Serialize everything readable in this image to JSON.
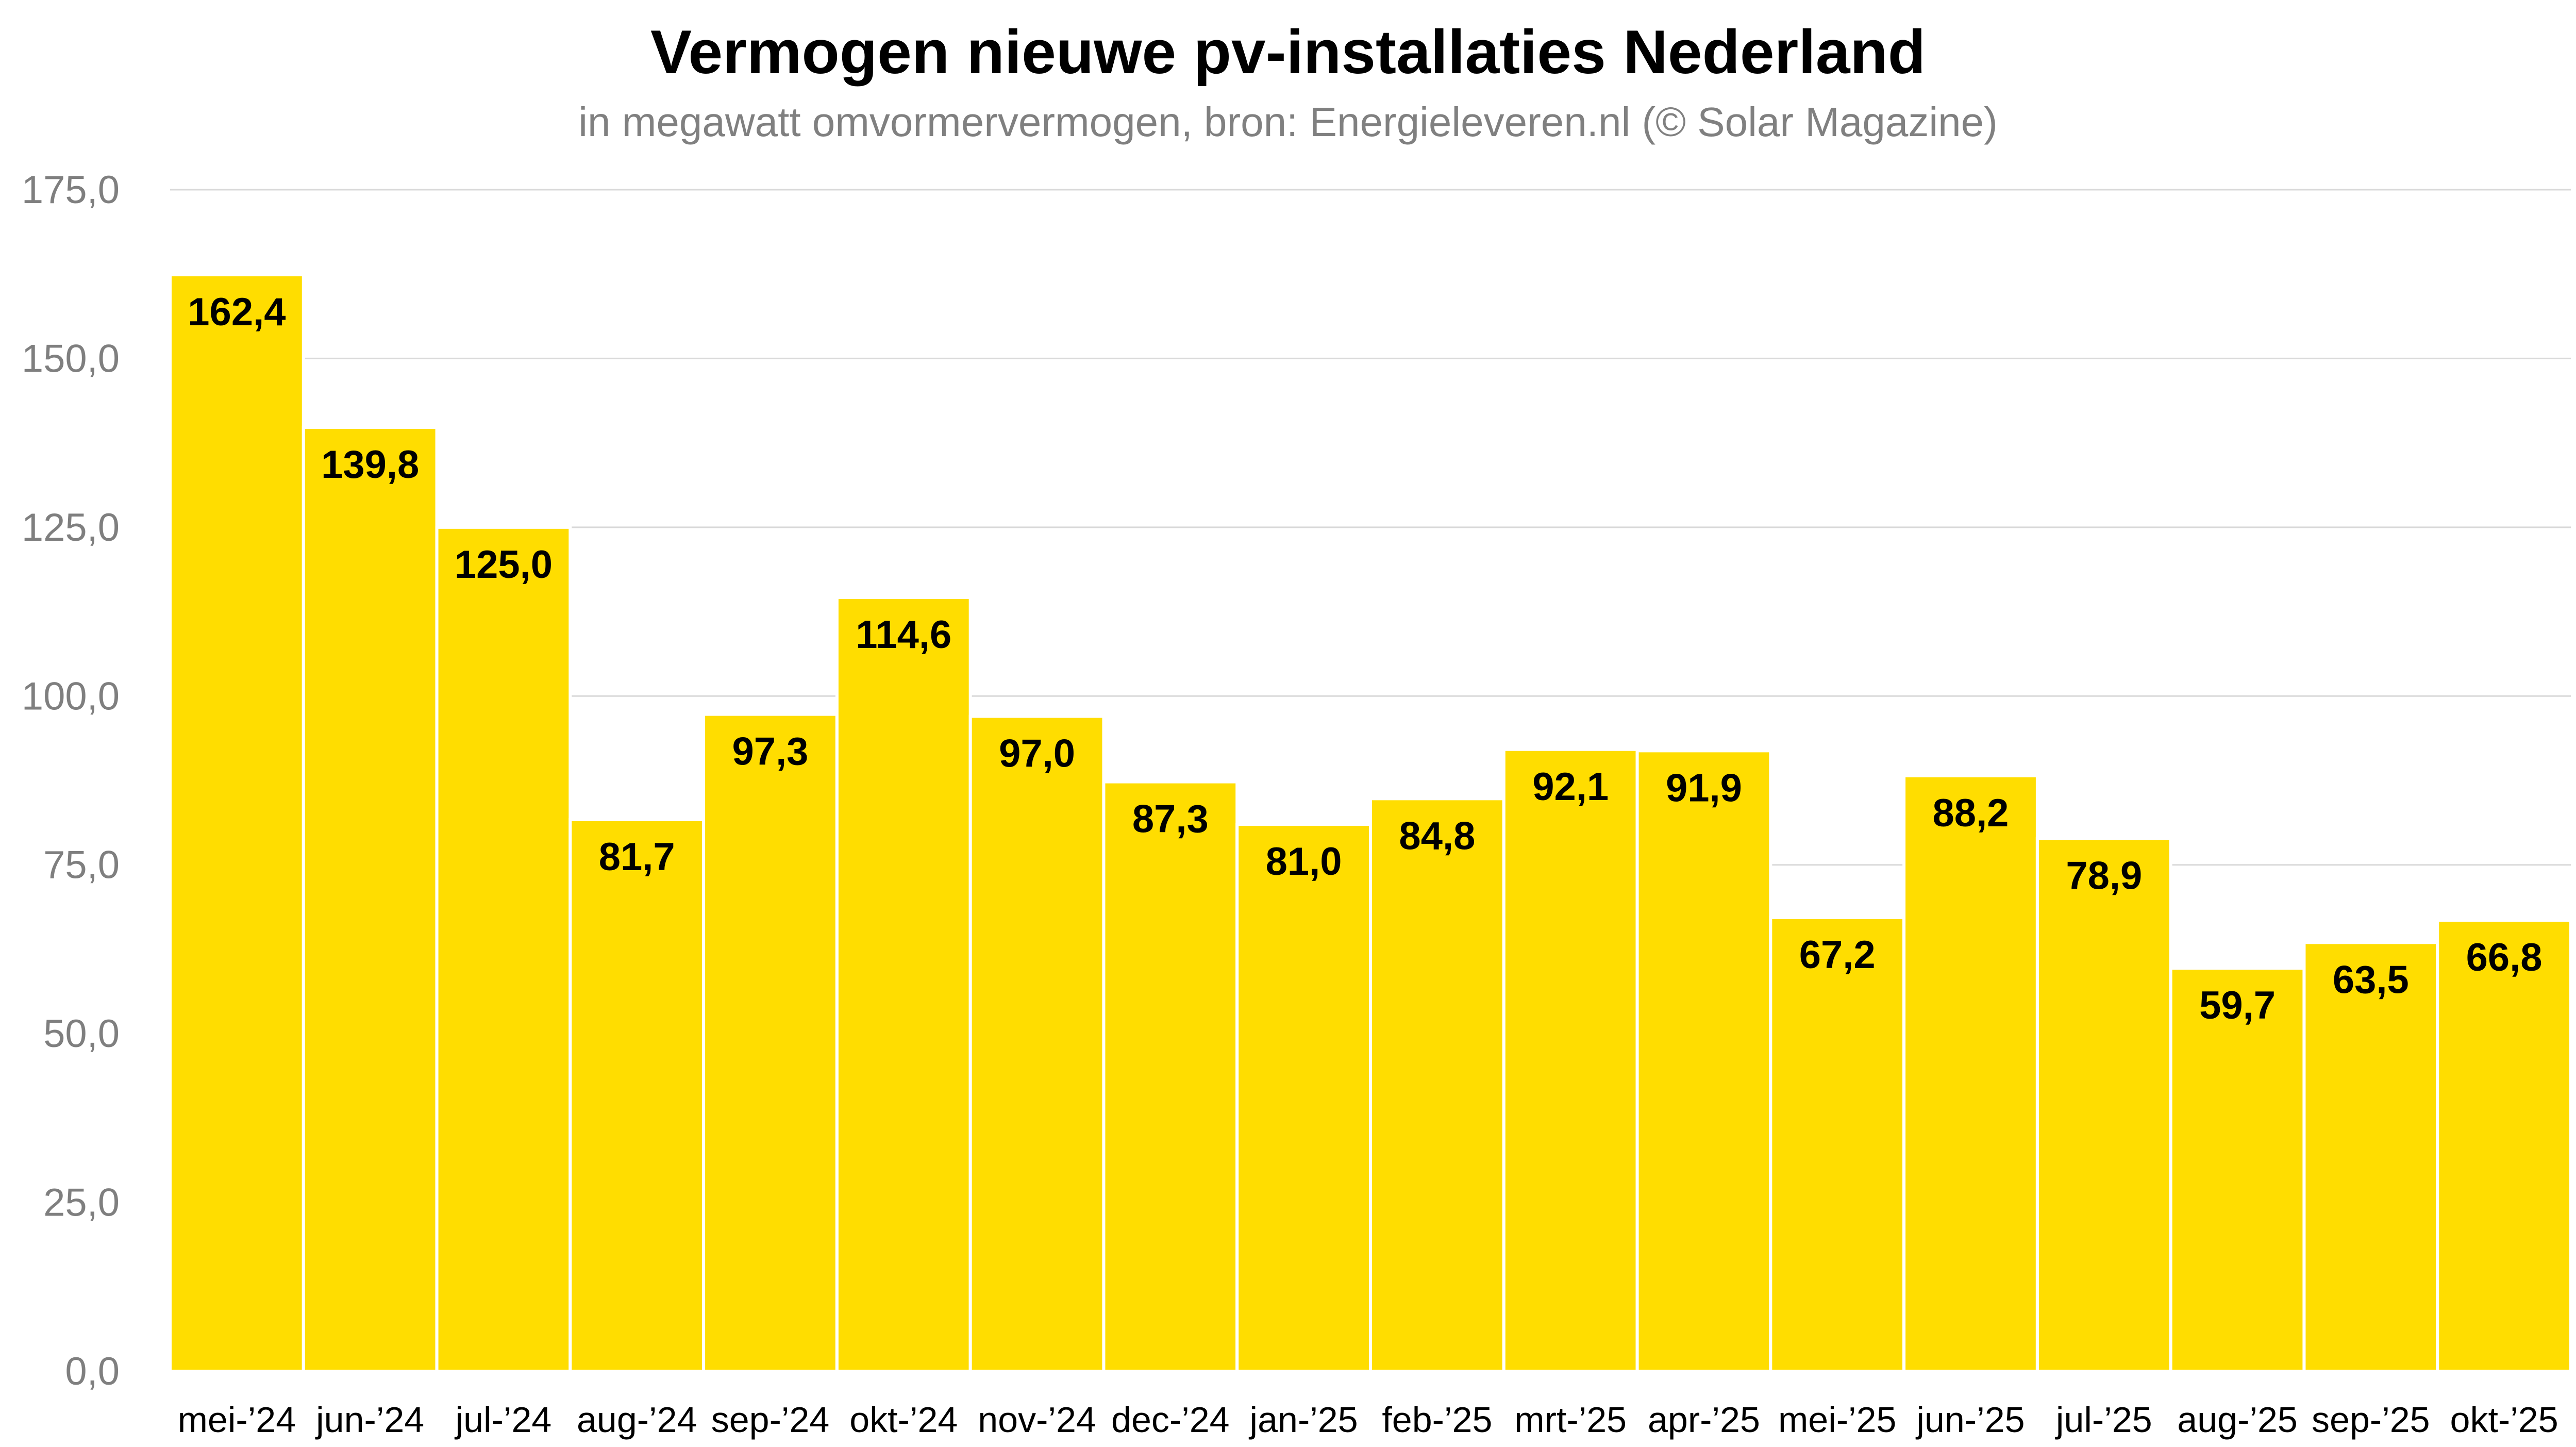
{
  "colors": {
    "bar": "#FFDD00",
    "grid": "#D9D9D9",
    "axis_text": "#7F7F7F",
    "title": "#000000",
    "subtitle": "#808080"
  },
  "chart_data": {
    "type": "bar",
    "title": "Vermogen nieuwe pv-installaties Nederland",
    "subtitle": "in megawatt omvormervermogen, bron: Energieleveren.nl (© Solar Magazine)",
    "xlabel": "",
    "ylabel": "",
    "ylim": [
      0,
      175
    ],
    "yticks": [
      "0,0",
      "25,0",
      "50,0",
      "75,0",
      "100,0",
      "125,0",
      "150,0",
      "175,0"
    ],
    "grid": true,
    "legend": "none",
    "categories": [
      "mei-’24",
      "jun-’24",
      "jul-’24",
      "aug-’24",
      "sep-’24",
      "okt-’24",
      "nov-’24",
      "dec-’24",
      "jan-’25",
      "feb-’25",
      "mrt-’25",
      "apr-’25",
      "mei-’25",
      "jun-’25",
      "jul-’25",
      "aug-’25",
      "sep-’25",
      "okt-’25"
    ],
    "values": [
      162.4,
      139.8,
      125.0,
      81.7,
      97.3,
      114.6,
      97.0,
      87.3,
      81.0,
      84.8,
      92.1,
      91.9,
      67.2,
      88.2,
      78.9,
      59.7,
      63.5,
      66.8
    ],
    "value_labels": [
      "162,4",
      "139,8",
      "125,0",
      "81,7",
      "97,3",
      "114,6",
      "97,0",
      "87,3",
      "81,0",
      "84,8",
      "92,1",
      "91,9",
      "67,2",
      "88,2",
      "78,9",
      "59,7",
      "63,5",
      "66,8"
    ]
  }
}
